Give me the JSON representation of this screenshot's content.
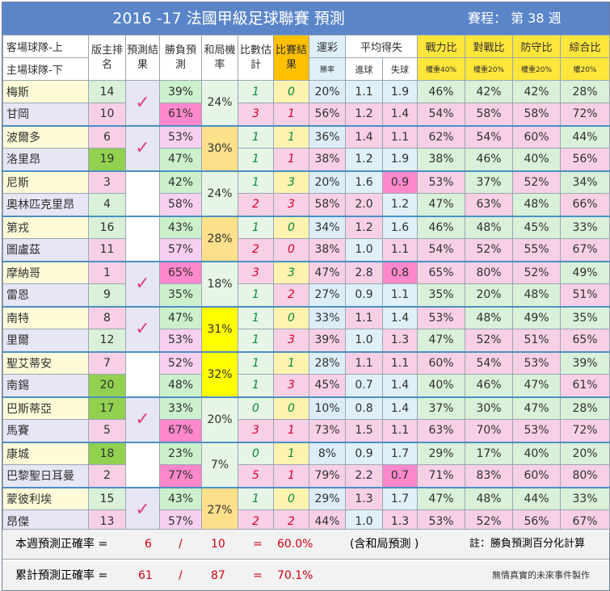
{
  "title": {
    "main": "2016 -17  法國甲級足球聯賽  預測",
    "round": "賽程： 第 38 週"
  },
  "headers": {
    "team_top": "客場球隊-上",
    "team_bottom": "主場球隊-下",
    "rank": "版主排名",
    "predict": "預測結果",
    "winloss": "勝負預測",
    "draw": "和局機率",
    "score_est": "比數估計",
    "result": "比賽結果",
    "lottery": "運彩",
    "lottery_sub": "勝率",
    "avg": "平均得失",
    "avg_for": "進球",
    "avg_against": "失球",
    "power": "戰力比",
    "power_w": "權重40%",
    "h2h": "對戰比",
    "h2h_w": "權重20%",
    "def": "防守比",
    "def_w": "權重20%",
    "total": "綜合比",
    "total_w": "權20%"
  },
  "matches": [
    {
      "away": {
        "name": "梅斯",
        "rank": "14",
        "wl": "39%",
        "se": "1",
        "res": "0",
        "lot": "20%",
        "gf": "1.1",
        "ga": "1.9",
        "pw": "46%",
        "h2h": "42%",
        "df": "42%",
        "tot": "28%"
      },
      "home": {
        "name": "甘岡",
        "rank": "10",
        "wl": "61%",
        "se": "3",
        "res": "1",
        "lot": "56%",
        "gf": "1.2",
        "ga": "1.4",
        "pw": "54%",
        "h2h": "58%",
        "df": "58%",
        "tot": "72%"
      },
      "draw": "24%",
      "check": "✓"
    },
    {
      "away": {
        "name": "波爾多",
        "rank": "6",
        "wl": "53%",
        "se": "1",
        "res": "1",
        "lot": "36%",
        "gf": "1.4",
        "ga": "1.1",
        "pw": "62%",
        "h2h": "54%",
        "df": "60%",
        "tot": "44%"
      },
      "home": {
        "name": "洛里昂",
        "rank": "19",
        "wl": "47%",
        "se": "1",
        "res": "1",
        "lot": "38%",
        "gf": "1.2",
        "ga": "1.9",
        "pw": "38%",
        "h2h": "46%",
        "df": "40%",
        "tot": "56%"
      },
      "draw": "30%",
      "check": "✓"
    },
    {
      "away": {
        "name": "尼斯",
        "rank": "3",
        "wl": "42%",
        "se": "1",
        "res": "3",
        "lot": "20%",
        "gf": "1.6",
        "ga": "0.9",
        "pw": "53%",
        "h2h": "37%",
        "df": "52%",
        "tot": "34%"
      },
      "home": {
        "name": "奧林匹克里昂",
        "rank": "4",
        "wl": "58%",
        "se": "2",
        "res": "3",
        "lot": "58%",
        "gf": "2.0",
        "ga": "1.2",
        "pw": "47%",
        "h2h": "63%",
        "df": "48%",
        "tot": "66%"
      },
      "draw": "24%",
      "check": ""
    },
    {
      "away": {
        "name": "第戎",
        "rank": "16",
        "wl": "43%",
        "se": "1",
        "res": "0",
        "lot": "34%",
        "gf": "1.2",
        "ga": "1.6",
        "pw": "46%",
        "h2h": "48%",
        "df": "45%",
        "tot": "33%"
      },
      "home": {
        "name": "圖盧茲",
        "rank": "11",
        "wl": "57%",
        "se": "2",
        "res": "0",
        "lot": "38%",
        "gf": "1.0",
        "ga": "1.1",
        "pw": "54%",
        "h2h": "52%",
        "df": "55%",
        "tot": "67%"
      },
      "draw": "28%",
      "check": ""
    },
    {
      "away": {
        "name": "摩納哥",
        "rank": "1",
        "wl": "65%",
        "se": "3",
        "res": "3",
        "lot": "47%",
        "gf": "2.8",
        "ga": "0.8",
        "pw": "65%",
        "h2h": "80%",
        "df": "52%",
        "tot": "49%"
      },
      "home": {
        "name": "雷恩",
        "rank": "9",
        "wl": "35%",
        "se": "1",
        "res": "2",
        "lot": "27%",
        "gf": "0.9",
        "ga": "1.1",
        "pw": "35%",
        "h2h": "20%",
        "df": "48%",
        "tot": "51%"
      },
      "draw": "18%",
      "check": "✓"
    },
    {
      "away": {
        "name": "南特",
        "rank": "8",
        "wl": "47%",
        "se": "1",
        "res": "0",
        "lot": "33%",
        "gf": "1.1",
        "ga": "1.4",
        "pw": "53%",
        "h2h": "48%",
        "df": "49%",
        "tot": "35%"
      },
      "home": {
        "name": "里爾",
        "rank": "12",
        "wl": "53%",
        "se": "1",
        "res": "3",
        "lot": "39%",
        "gf": "1.0",
        "ga": "1.3",
        "pw": "47%",
        "h2h": "52%",
        "df": "51%",
        "tot": "65%"
      },
      "draw": "31%",
      "check": "✓"
    },
    {
      "away": {
        "name": "聖艾蒂安",
        "rank": "7",
        "wl": "52%",
        "se": "1",
        "res": "1",
        "lot": "28%",
        "gf": "1.1",
        "ga": "1.1",
        "pw": "60%",
        "h2h": "54%",
        "df": "53%",
        "tot": "39%"
      },
      "home": {
        "name": "南錫",
        "rank": "20",
        "wl": "48%",
        "se": "1",
        "res": "3",
        "lot": "45%",
        "gf": "0.7",
        "ga": "1.4",
        "pw": "40%",
        "h2h": "46%",
        "df": "47%",
        "tot": "61%"
      },
      "draw": "32%",
      "check": ""
    },
    {
      "away": {
        "name": "巴斯蒂亞",
        "rank": "17",
        "wl": "33%",
        "se": "0",
        "res": "0",
        "lot": "10%",
        "gf": "0.8",
        "ga": "1.4",
        "pw": "37%",
        "h2h": "30%",
        "df": "47%",
        "tot": "28%"
      },
      "home": {
        "name": "馬賽",
        "rank": "5",
        "wl": "67%",
        "se": "3",
        "res": "1",
        "lot": "73%",
        "gf": "1.5",
        "ga": "1.1",
        "pw": "63%",
        "h2h": "70%",
        "df": "53%",
        "tot": "72%"
      },
      "draw": "20%",
      "check": "✓"
    },
    {
      "away": {
        "name": "康城",
        "rank": "18",
        "wl": "23%",
        "se": "0",
        "res": "1",
        "lot": "8%",
        "gf": "0.9",
        "ga": "1.7",
        "pw": "29%",
        "h2h": "17%",
        "df": "40%",
        "tot": "20%"
      },
      "home": {
        "name": "巴黎聖日耳曼",
        "rank": "2",
        "wl": "77%",
        "se": "5",
        "res": "1",
        "lot": "79%",
        "gf": "2.2",
        "ga": "0.7",
        "pw": "71%",
        "h2h": "83%",
        "df": "60%",
        "tot": "80%"
      },
      "draw": "7%",
      "check": ""
    },
    {
      "away": {
        "name": "蒙彼利埃",
        "rank": "15",
        "wl": "43%",
        "se": "1",
        "res": "0",
        "lot": "29%",
        "gf": "1.3",
        "ga": "1.7",
        "pw": "47%",
        "h2h": "48%",
        "df": "44%",
        "tot": "33%"
      },
      "home": {
        "name": "昂傑",
        "rank": "13",
        "wl": "57%",
        "se": "2",
        "res": "2",
        "lot": "44%",
        "gf": "1.0",
        "ga": "1.3",
        "pw": "53%",
        "h2h": "52%",
        "df": "56%",
        "tot": "67%"
      },
      "draw": "27%",
      "check": "✓"
    }
  ],
  "summary": {
    "week_label": "本週預測正確率 =",
    "week_hit": "6",
    "slash": "/",
    "week_total": "10",
    "eq": "=",
    "week_rate": "60.0%",
    "week_note": "(含和局預測 )",
    "footnote": "註：勝負預測百分化計算",
    "cum_label": "累計預測正確率 =",
    "cum_hit": "61",
    "cum_total": "87",
    "cum_rate": "70.1%",
    "credit": "無情真實的未來事件製作"
  },
  "colors": {
    "title_bar": "#5b85c9",
    "header_yellow": "#ffe63b",
    "header_orange": "#ffc000",
    "check_pink": "#e0407a",
    "high_pink": "#ff88cc",
    "draw_yellow": "#ffff00"
  }
}
